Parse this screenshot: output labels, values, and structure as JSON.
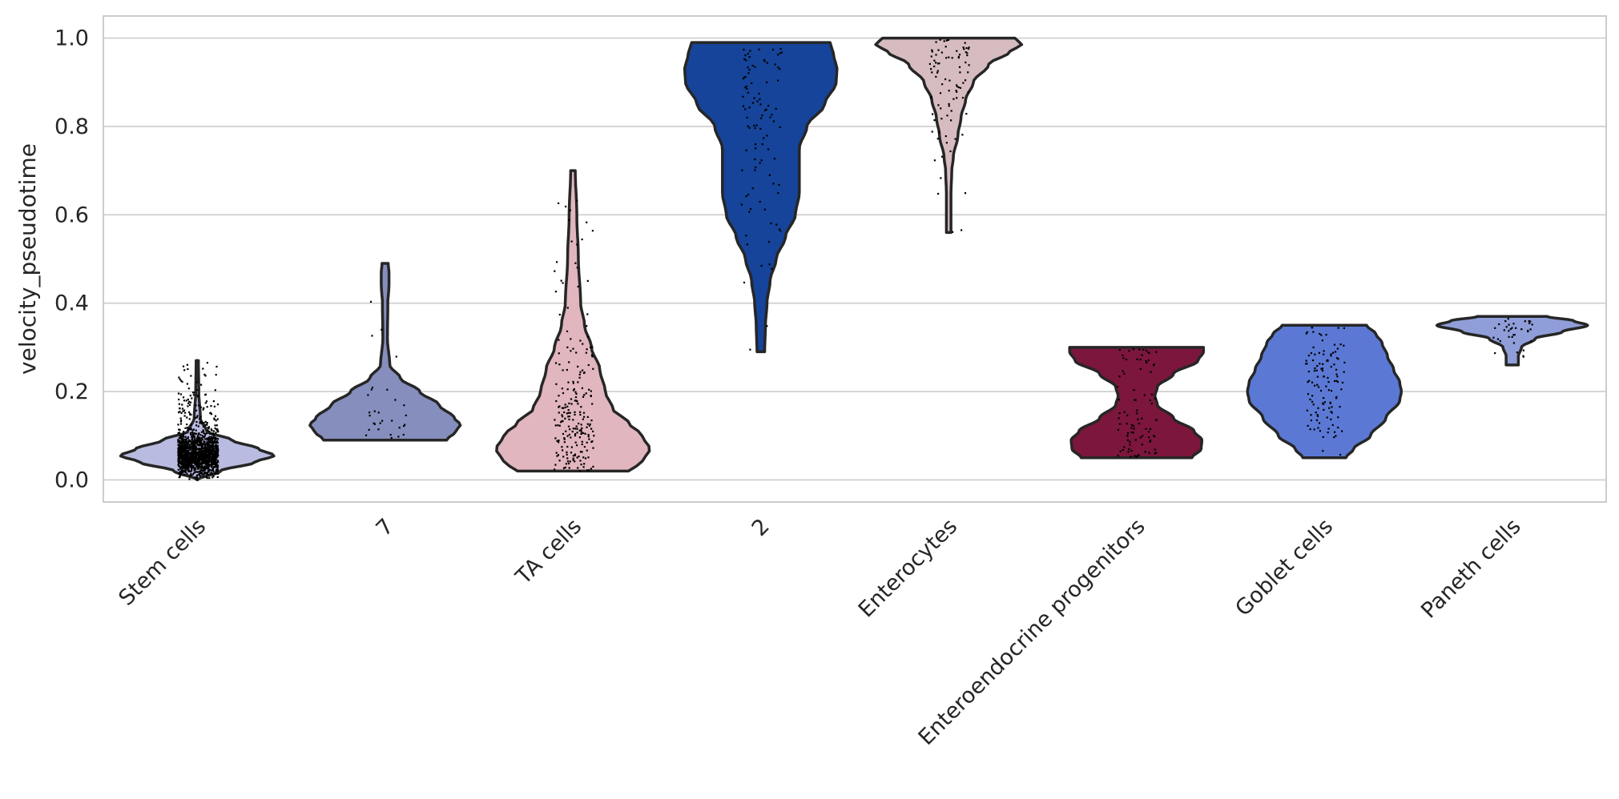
{
  "chart_data": {
    "type": "violin",
    "title": "",
    "xlabel": "",
    "ylabel": "velocity_pseudotime",
    "ylim": [
      -0.05,
      1.05
    ],
    "yticks": [
      "0.0",
      "0.2",
      "0.4",
      "0.6",
      "0.8",
      "1.0"
    ],
    "grid": true,
    "categories": [
      "Stem cells",
      "7",
      "TA cells",
      "2",
      "Enterocytes",
      "Enteroendocrine progenitors",
      "Goblet cells",
      "Paneth cells"
    ],
    "series": [
      {
        "category": "Stem cells",
        "color": "#b9bce0",
        "min": 0.0,
        "max": 0.27,
        "density": [
          [
            0.0,
            0.0
          ],
          [
            0.02,
            0.3
          ],
          [
            0.04,
            0.75
          ],
          [
            0.055,
            1.0
          ],
          [
            0.07,
            0.8
          ],
          [
            0.09,
            0.45
          ],
          [
            0.11,
            0.12
          ],
          [
            0.14,
            0.04
          ],
          [
            0.2,
            0.02
          ],
          [
            0.27,
            0.015
          ]
        ]
      },
      {
        "category": "7",
        "color": "#868ebd",
        "min": 0.09,
        "max": 0.49,
        "density": [
          [
            0.09,
            0.8
          ],
          [
            0.11,
            0.92
          ],
          [
            0.125,
            0.98
          ],
          [
            0.14,
            0.9
          ],
          [
            0.17,
            0.7
          ],
          [
            0.2,
            0.45
          ],
          [
            0.23,
            0.2
          ],
          [
            0.26,
            0.06
          ],
          [
            0.32,
            0.03
          ],
          [
            0.4,
            0.035
          ],
          [
            0.44,
            0.05
          ],
          [
            0.47,
            0.05
          ],
          [
            0.49,
            0.04
          ]
        ]
      },
      {
        "category": "TA cells",
        "color": "#e1b6be",
        "min": 0.02,
        "max": 0.7,
        "density": [
          [
            0.02,
            0.72
          ],
          [
            0.04,
            0.9
          ],
          [
            0.07,
            1.0
          ],
          [
            0.1,
            0.9
          ],
          [
            0.13,
            0.72
          ],
          [
            0.16,
            0.52
          ],
          [
            0.2,
            0.42
          ],
          [
            0.25,
            0.35
          ],
          [
            0.3,
            0.24
          ],
          [
            0.35,
            0.15
          ],
          [
            0.4,
            0.1
          ],
          [
            0.5,
            0.07
          ],
          [
            0.6,
            0.05
          ],
          [
            0.7,
            0.03
          ]
        ]
      },
      {
        "category": "2",
        "color": "#15449a",
        "min": 0.29,
        "max": 0.99,
        "density": [
          [
            0.29,
            0.05
          ],
          [
            0.35,
            0.06
          ],
          [
            0.4,
            0.08
          ],
          [
            0.45,
            0.12
          ],
          [
            0.5,
            0.2
          ],
          [
            0.55,
            0.32
          ],
          [
            0.6,
            0.45
          ],
          [
            0.65,
            0.5
          ],
          [
            0.7,
            0.5
          ],
          [
            0.75,
            0.5
          ],
          [
            0.8,
            0.6
          ],
          [
            0.85,
            0.83
          ],
          [
            0.9,
            0.98
          ],
          [
            0.93,
            0.99
          ],
          [
            0.96,
            0.95
          ],
          [
            0.98,
            0.92
          ],
          [
            0.99,
            0.9
          ]
        ]
      },
      {
        "category": "Enterocytes",
        "color": "#d6bcc0",
        "min": 0.56,
        "max": 1.0,
        "density": [
          [
            0.56,
            0.03
          ],
          [
            0.6,
            0.03
          ],
          [
            0.65,
            0.03
          ],
          [
            0.7,
            0.04
          ],
          [
            0.73,
            0.06
          ],
          [
            0.78,
            0.12
          ],
          [
            0.82,
            0.16
          ],
          [
            0.86,
            0.22
          ],
          [
            0.9,
            0.32
          ],
          [
            0.94,
            0.52
          ],
          [
            0.97,
            0.8
          ],
          [
            0.985,
            0.95
          ],
          [
            0.995,
            0.9
          ],
          [
            1.0,
            0.86
          ]
        ]
      },
      {
        "category": "Enteroendocrine progenitors",
        "color": "#7c163c",
        "min": 0.05,
        "max": 0.3,
        "density": [
          [
            0.05,
            0.72
          ],
          [
            0.07,
            0.84
          ],
          [
            0.09,
            0.85
          ],
          [
            0.11,
            0.75
          ],
          [
            0.14,
            0.48
          ],
          [
            0.17,
            0.27
          ],
          [
            0.19,
            0.24
          ],
          [
            0.21,
            0.27
          ],
          [
            0.24,
            0.48
          ],
          [
            0.27,
            0.8
          ],
          [
            0.29,
            0.87
          ],
          [
            0.3,
            0.87
          ]
        ]
      },
      {
        "category": "Goblet cells",
        "color": "#5b79d4",
        "min": 0.05,
        "max": 0.35,
        "density": [
          [
            0.05,
            0.28
          ],
          [
            0.07,
            0.38
          ],
          [
            0.1,
            0.6
          ],
          [
            0.14,
            0.8
          ],
          [
            0.18,
            0.98
          ],
          [
            0.2,
            1.0
          ],
          [
            0.22,
            0.98
          ],
          [
            0.25,
            0.9
          ],
          [
            0.28,
            0.82
          ],
          [
            0.31,
            0.75
          ],
          [
            0.33,
            0.67
          ],
          [
            0.35,
            0.55
          ]
        ]
      },
      {
        "category": "Paneth cells",
        "color": "#8f9ed8",
        "min": 0.26,
        "max": 0.37,
        "density": [
          [
            0.26,
            0.08
          ],
          [
            0.28,
            0.08
          ],
          [
            0.3,
            0.12
          ],
          [
            0.32,
            0.3
          ],
          [
            0.335,
            0.65
          ],
          [
            0.35,
            0.98
          ],
          [
            0.36,
            0.8
          ],
          [
            0.37,
            0.45
          ]
        ]
      }
    ]
  }
}
